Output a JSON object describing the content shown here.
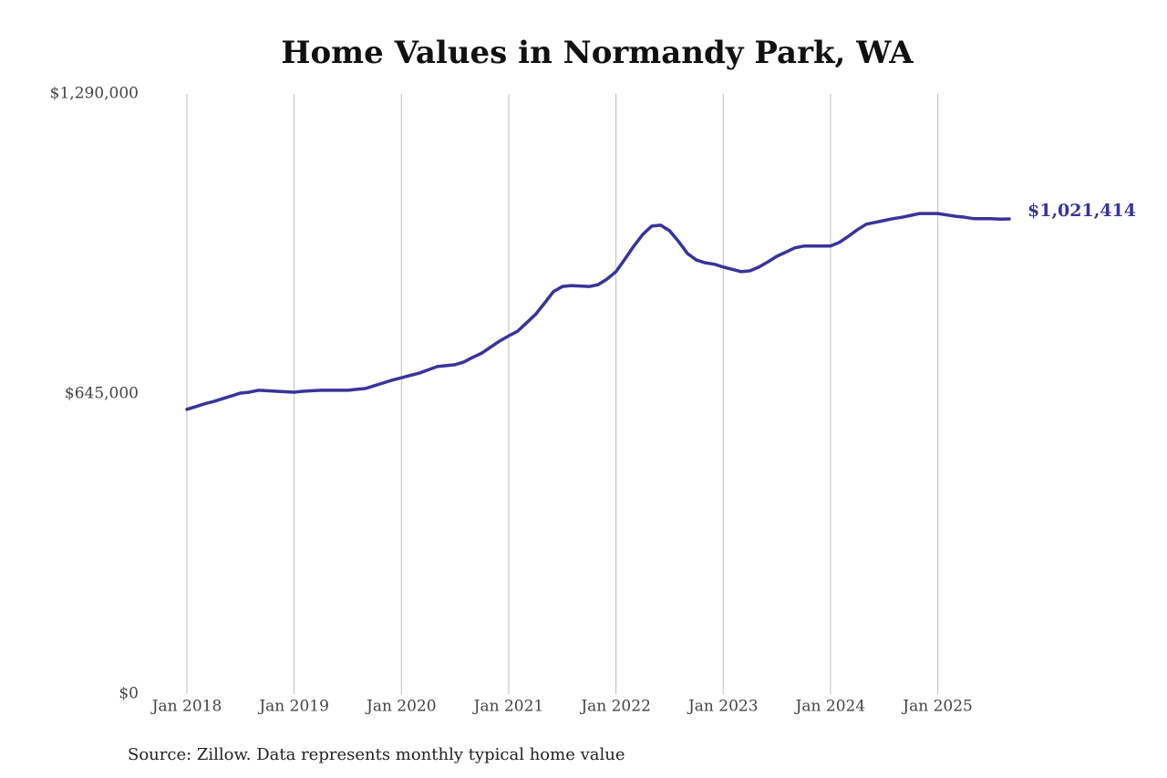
{
  "chart_data": {
    "type": "line",
    "title": "Home Values in Normandy Park, WA",
    "source": "Source: Zillow. Data represents monthly typical home value",
    "x": [
      "2018-01",
      "2018-02",
      "2018-03",
      "2018-04",
      "2018-05",
      "2018-06",
      "2018-07",
      "2018-08",
      "2018-09",
      "2018-10",
      "2018-11",
      "2018-12",
      "2019-01",
      "2019-02",
      "2019-03",
      "2019-04",
      "2019-05",
      "2019-06",
      "2019-07",
      "2019-08",
      "2019-09",
      "2019-10",
      "2019-11",
      "2019-12",
      "2020-01",
      "2020-02",
      "2020-03",
      "2020-04",
      "2020-05",
      "2020-06",
      "2020-07",
      "2020-08",
      "2020-09",
      "2020-10",
      "2020-11",
      "2020-12",
      "2021-01",
      "2021-02",
      "2021-03",
      "2021-04",
      "2021-05",
      "2021-06",
      "2021-07",
      "2021-08",
      "2021-09",
      "2021-10",
      "2021-11",
      "2021-12",
      "2022-01",
      "2022-02",
      "2022-03",
      "2022-04",
      "2022-05",
      "2022-06",
      "2022-07",
      "2022-08",
      "2022-09",
      "2022-10",
      "2022-11",
      "2022-12",
      "2023-01",
      "2023-02",
      "2023-03",
      "2023-04",
      "2023-05",
      "2023-06",
      "2023-07",
      "2023-08",
      "2023-09",
      "2023-10",
      "2023-11",
      "2023-12",
      "2024-01",
      "2024-02",
      "2024-03",
      "2024-04",
      "2024-05",
      "2024-06",
      "2024-07",
      "2024-08",
      "2024-09",
      "2024-10",
      "2024-11",
      "2024-12",
      "2025-01",
      "2025-02",
      "2025-03",
      "2025-04",
      "2025-05",
      "2025-06",
      "2025-07",
      "2025-08",
      "2025-09"
    ],
    "series": [
      {
        "color": "#39339a",
        "values": [
          612000,
          618000,
          624000,
          629000,
          635000,
          641000,
          647000,
          649000,
          653000,
          652000,
          651000,
          650000,
          649000,
          651000,
          652000,
          653000,
          653000,
          653000,
          653000,
          655000,
          657000,
          663000,
          669000,
          675000,
          680000,
          685000,
          690000,
          697000,
          704000,
          706000,
          708000,
          714000,
          724000,
          733000,
          746000,
          759000,
          770000,
          780000,
          798000,
          816000,
          840000,
          865000,
          876000,
          878000,
          877000,
          876000,
          880000,
          892000,
          908000,
          935000,
          963000,
          988000,
          1006000,
          1008000,
          996000,
          973000,
          947000,
          933000,
          927000,
          924000,
          918000,
          913000,
          908000,
          910000,
          918000,
          929000,
          941000,
          950000,
          959000,
          963000,
          963000,
          963000,
          963000,
          971000,
          984000,
          998000,
          1010000,
          1014000,
          1018000,
          1022000,
          1025000,
          1029000,
          1033000,
          1033000,
          1033000,
          1030000,
          1027000,
          1025000,
          1022000,
          1022000,
          1022000,
          1021000,
          1021414
        ],
        "value_labels": [
          null,
          null,
          null,
          null,
          null,
          null,
          null,
          null,
          null,
          null,
          null,
          null,
          null,
          null,
          null,
          null,
          null,
          null,
          null,
          null,
          null,
          null,
          null,
          null,
          null,
          null,
          null,
          null,
          null,
          null,
          null,
          null,
          null,
          null,
          null,
          null,
          null,
          null,
          null,
          null,
          null,
          null,
          null,
          null,
          null,
          null,
          null,
          null,
          null,
          null,
          null,
          null,
          null,
          null,
          null,
          null,
          null,
          null,
          null,
          null,
          null,
          null,
          null,
          null,
          null,
          null,
          null,
          null,
          null,
          null,
          null,
          null,
          null,
          null,
          null,
          null,
          null,
          null,
          null,
          null,
          null,
          null,
          null,
          null,
          null,
          null,
          null,
          null,
          null,
          null,
          null,
          null,
          "$1,021,414"
        ]
      }
    ],
    "xlim": [
      "2018-01",
      "2025-09"
    ],
    "xticks": [
      {
        "value": "2018-01",
        "label": "Jan 2018"
      },
      {
        "value": "2019-01",
        "label": "Jan 2019"
      },
      {
        "value": "2020-01",
        "label": "Jan 2020"
      },
      {
        "value": "2021-01",
        "label": "Jan 2021"
      },
      {
        "value": "2022-01",
        "label": "Jan 2022"
      },
      {
        "value": "2023-01",
        "label": "Jan 2023"
      },
      {
        "value": "2024-01",
        "label": "Jan 2024"
      },
      {
        "value": "2025-01",
        "label": "Jan 2025"
      }
    ],
    "ylim": [
      0,
      1290000
    ],
    "yticks": [
      {
        "value": 0,
        "label": "$0"
      },
      {
        "value": 645000,
        "label": "$645,000"
      },
      {
        "value": 1290000,
        "label": "$1,290,000"
      }
    ],
    "grid": "x"
  }
}
